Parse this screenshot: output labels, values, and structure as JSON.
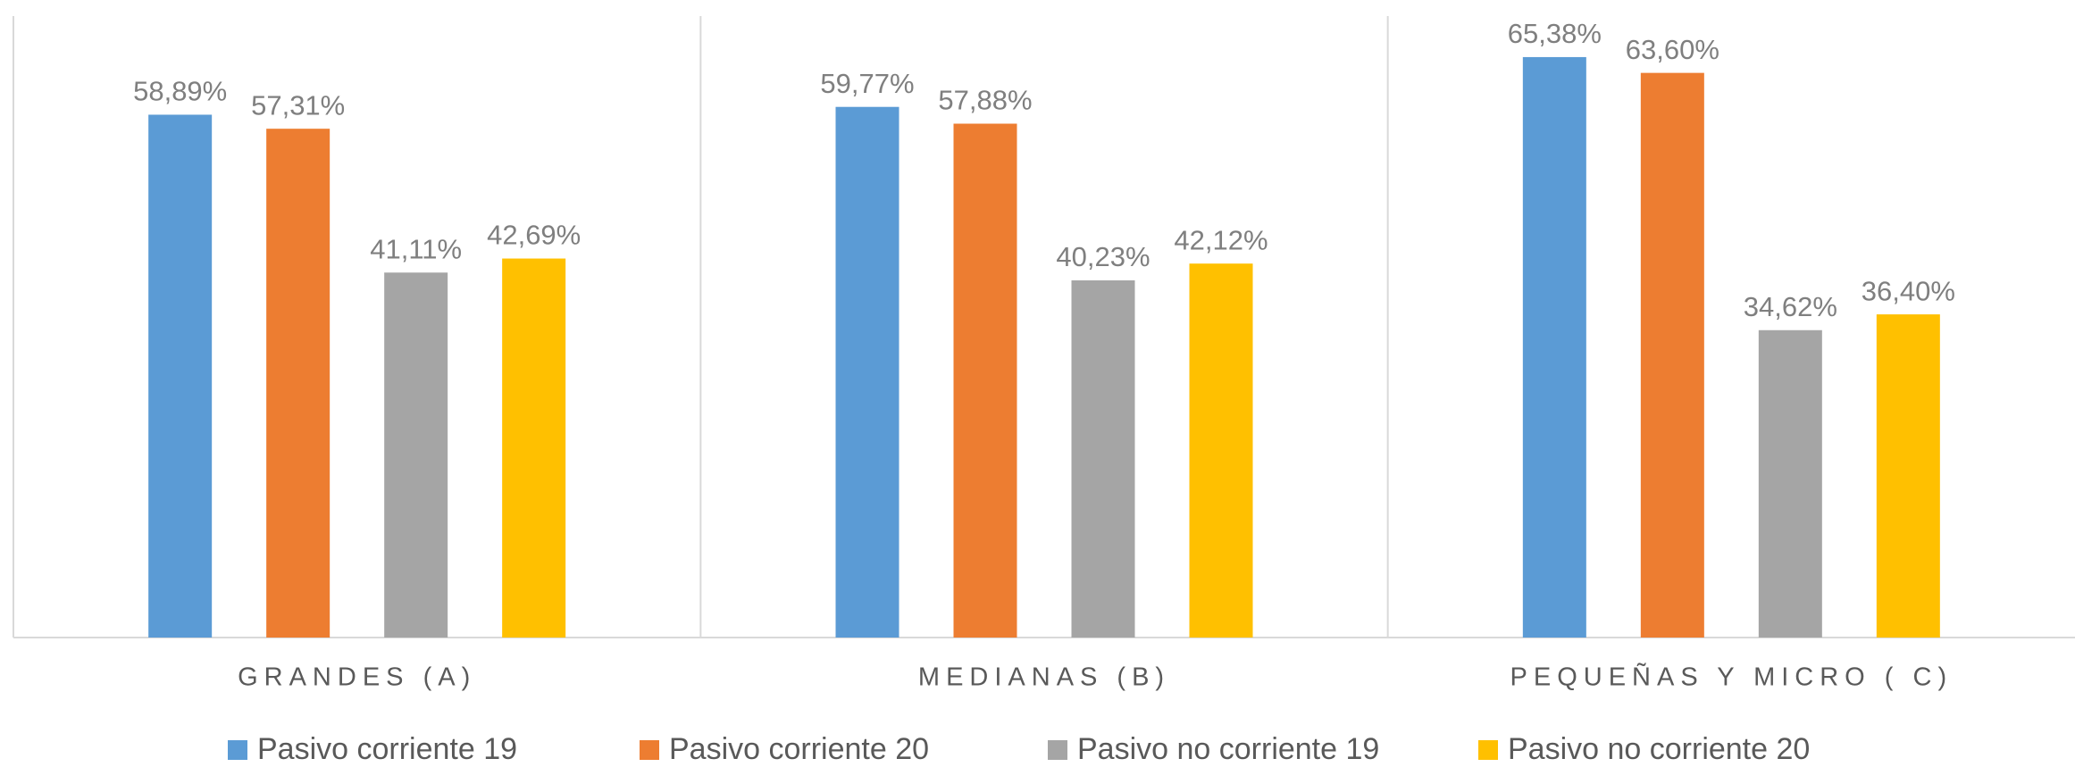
{
  "chart_data": {
    "type": "bar",
    "categories": [
      "GRANDES (A)",
      "MEDIANAS (B)",
      "PEQUEÑAS Y MICRO ( C)"
    ],
    "series": [
      {
        "name": "Pasivo corriente 19",
        "color": "#5b9bd5",
        "values": [
          58.89,
          59.77,
          65.38
        ],
        "value_labels": [
          "58,89%",
          "59,77%",
          "65,38%"
        ]
      },
      {
        "name": "Pasivo corriente 20",
        "color": "#ed7d31",
        "values": [
          57.31,
          57.88,
          63.6
        ],
        "value_labels": [
          "57,31%",
          "57,88%",
          "63,60%"
        ]
      },
      {
        "name": "Pasivo no corriente 19",
        "color": "#a5a5a5",
        "values": [
          41.11,
          40.23,
          34.62
        ],
        "value_labels": [
          "41,11%",
          "40,23%",
          "34,62%"
        ]
      },
      {
        "name": "Pasivo no corriente 20",
        "color": "#ffc000",
        "values": [
          42.69,
          42.12,
          36.4
        ],
        "value_labels": [
          "42,69%",
          "42,12%",
          "36,40%"
        ]
      }
    ],
    "ylim": [
      0,
      70
    ]
  }
}
